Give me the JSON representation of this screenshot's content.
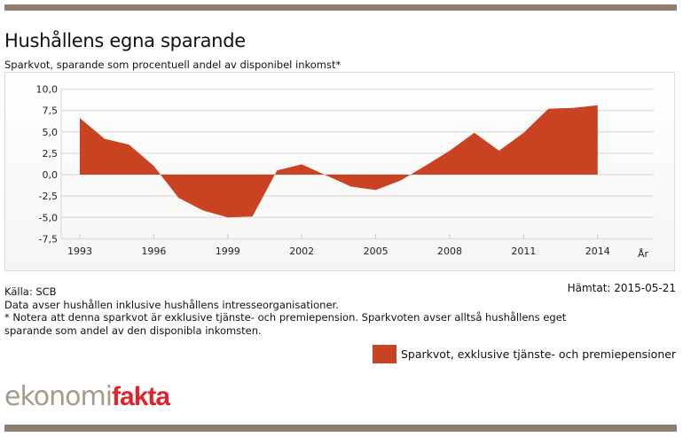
{
  "header": {
    "title": "Hushållens egna sparande",
    "subtitle": "Sparkvot, sparande som procentuell andel av disponibel inkomst*"
  },
  "footer": {
    "source": "Källa: SCB",
    "note1": "Data avser hushållen inklusive hushållens intresseorganisationer.",
    "note2": "* Notera att denna sparkvot är exklusive tjänste- och premiepension. Sparkvoten avser alltså hushållens eget",
    "note3": "sparande som andel av den disponibla inkomsten.",
    "fetched": "Hämtat: 2015-05-21"
  },
  "legend": {
    "label": "Sparkvot, exklusive tjänste- och premiepensioner",
    "color": "#c94322"
  },
  "logo": {
    "part1": "ekonomi",
    "part2": "fakta",
    "color1": "#a59a8c",
    "color2": "#e2232a"
  },
  "colors": {
    "bars": "#8e7f6c",
    "area": "#c94322",
    "grid": "#e4e0dc"
  },
  "chart_data": {
    "type": "area",
    "title": "Hushållens egna sparande",
    "subtitle": "Sparkvot, sparande som procentuell andel av disponibel inkomst*",
    "xlabel": "År",
    "ylabel": "",
    "ylim": [
      -7.5,
      10.0
    ],
    "yticks": [
      "10,0",
      "7,5",
      "5,0",
      "2,5",
      "0,0",
      "-2,5",
      "-5,0",
      "-7,5"
    ],
    "ytick_values": [
      10.0,
      7.5,
      5.0,
      2.5,
      0.0,
      -2.5,
      -5.0,
      -7.5
    ],
    "xticks": [
      "1993",
      "1996",
      "1999",
      "2002",
      "2005",
      "2008",
      "2011",
      "2014"
    ],
    "grid": true,
    "legend_position": "bottom-right",
    "x": [
      1993,
      1994,
      1995,
      1996,
      1997,
      1998,
      1999,
      2000,
      2001,
      2002,
      2003,
      2004,
      2005,
      2006,
      2007,
      2008,
      2009,
      2010,
      2011,
      2012,
      2013,
      2014
    ],
    "series": [
      {
        "name": "Sparkvot, exklusive tjänste- och premiepensioner",
        "values": [
          6.6,
          4.2,
          3.5,
          1.0,
          -2.7,
          -4.2,
          -5.0,
          -4.9,
          0.5,
          1.2,
          -0.1,
          -1.4,
          -1.8,
          -0.7,
          1.0,
          2.8,
          4.9,
          2.8,
          4.9,
          7.7,
          7.8,
          8.1
        ]
      }
    ]
  }
}
